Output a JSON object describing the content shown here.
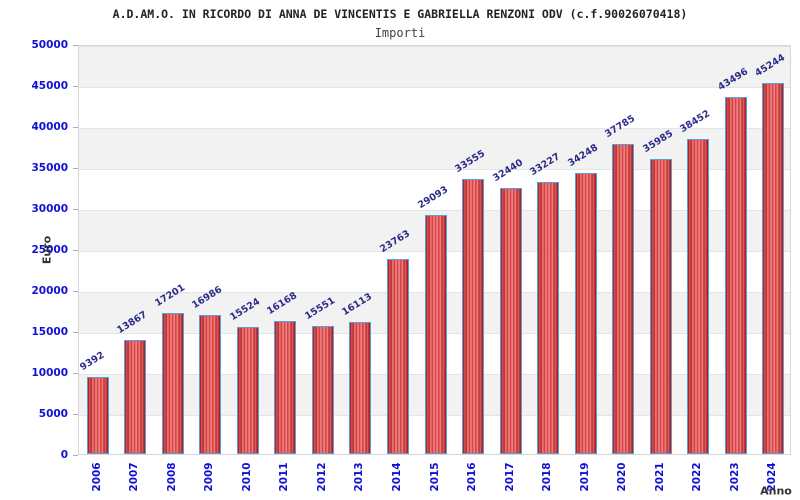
{
  "header": {
    "title": "A.D.AM.O. IN RICORDO DI ANNA DE VINCENTIS E GABRIELLA RENZONI ODV (c.f.90026070418)",
    "subtitle": "Importi"
  },
  "chart_data": {
    "type": "bar",
    "title": "A.D.AM.O. IN RICORDO DI ANNA DE VINCENTIS E GABRIELLA RENZONI ODV (c.f.90026070418)",
    "subtitle": "Importi",
    "xlabel": "Anno",
    "ylabel": "Euro",
    "categories": [
      "2006",
      "2007",
      "2008",
      "2009",
      "2010",
      "2011",
      "2012",
      "2013",
      "2014",
      "2015",
      "2016",
      "2017",
      "2018",
      "2019",
      "2020",
      "2021",
      "2022",
      "2023",
      "2024"
    ],
    "values": [
      9392,
      13867,
      17201,
      16986,
      15524,
      16168,
      15551,
      16113,
      23763,
      29093,
      33555,
      32440,
      33227,
      34248,
      37785,
      35985,
      38452,
      43496,
      45244
    ],
    "ylim": [
      0,
      50000
    ],
    "ytick_step": 5000,
    "grid": "horizontal-bands",
    "legend_position": "none"
  },
  "colors": {
    "title_text": "#222222",
    "subtitle_text": "#444444",
    "axis_tick_text": "#0f0fd6",
    "bar_value_text": "#2b2b8a",
    "axis_title_text": "#333333",
    "bar_fill_dark": "#c82424",
    "bar_fill_light": "#f29090",
    "bar_border": "#58a0d8",
    "band_gray": "#f2f2f2",
    "band_white": "#ffffff",
    "grid_line": "#e4e4e4"
  }
}
